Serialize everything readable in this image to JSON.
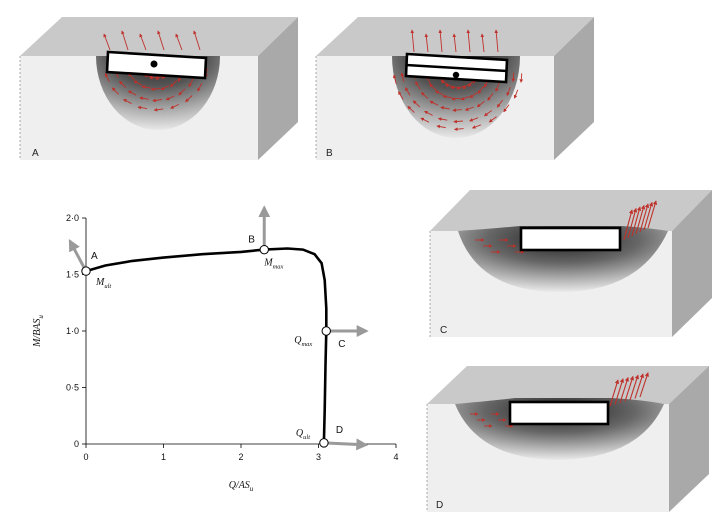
{
  "panels": [
    {
      "id": "A",
      "label": "A"
    },
    {
      "id": "B",
      "label": "B"
    },
    {
      "id": "C",
      "label": "C"
    },
    {
      "id": "D",
      "label": "D"
    }
  ],
  "chart_data": {
    "type": "line",
    "xlabel_main": "Q/AS",
    "xlabel_sub": "u",
    "ylabel_main": "M/BAS",
    "ylabel_sub": "u",
    "xlim": [
      0,
      4
    ],
    "ylim": [
      0,
      2
    ],
    "xticks": [
      {
        "v": 0,
        "label": "0"
      },
      {
        "v": 1,
        "label": "1"
      },
      {
        "v": 2,
        "label": "2"
      },
      {
        "v": 3,
        "label": "3"
      },
      {
        "v": 4,
        "label": "4"
      }
    ],
    "yticks": [
      {
        "v": 0,
        "label": "0"
      },
      {
        "v": 0.5,
        "label": "0·5"
      },
      {
        "v": 1.0,
        "label": "1·0"
      },
      {
        "v": 1.5,
        "label": "1·5"
      },
      {
        "v": 2.0,
        "label": "2·0"
      }
    ],
    "grid": false,
    "series": [
      {
        "x": [
          0,
          0.25,
          0.6,
          1.0,
          1.5,
          2.0,
          2.3,
          2.6,
          2.8,
          2.95,
          3.04,
          3.08,
          3.1,
          3.1,
          3.09,
          3.08,
          3.07
        ],
        "y": [
          1.53,
          1.58,
          1.62,
          1.65,
          1.68,
          1.7,
          1.72,
          1.73,
          1.72,
          1.68,
          1.6,
          1.45,
          1.2,
          1.0,
          0.7,
          0.3,
          0.01
        ]
      }
    ],
    "points": [
      {
        "letter": "A",
        "sym": "M",
        "sub": "ult",
        "x": 0,
        "y": 1.53
      },
      {
        "letter": "B",
        "sym": "M",
        "sub": "max",
        "x": 2.3,
        "y": 1.72
      },
      {
        "letter": "C",
        "sym": "Q",
        "sub": "max",
        "x": 3.1,
        "y": 1.0
      },
      {
        "letter": "D",
        "sym": "Q",
        "sub": "ult",
        "x": 3.07,
        "y": 0.01
      }
    ]
  }
}
